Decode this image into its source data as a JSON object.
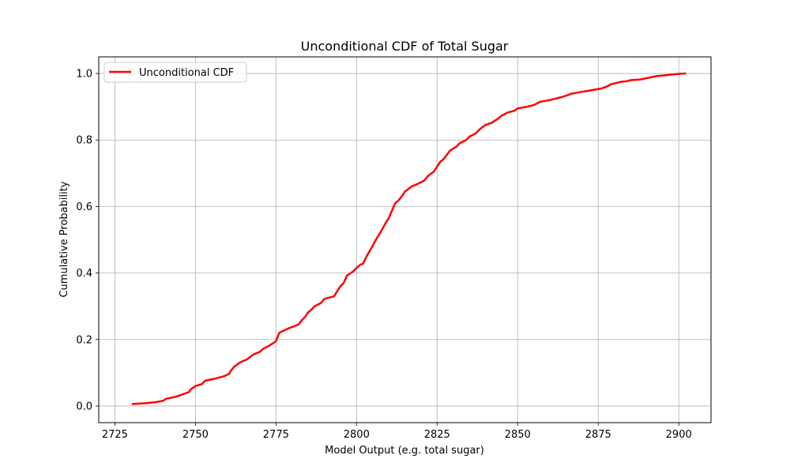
{
  "chart_data": {
    "type": "line",
    "title": "Unconditional CDF of Total Sugar",
    "xlabel": "Model Output (e.g. total sugar)",
    "ylabel": "Cumulative Probability",
    "xlim": [
      2720,
      2910
    ],
    "ylim": [
      -0.05,
      1.05
    ],
    "xticks": [
      2725,
      2750,
      2775,
      2800,
      2825,
      2850,
      2875,
      2900
    ],
    "yticks": [
      0.0,
      0.2,
      0.4,
      0.6,
      0.8,
      1.0
    ],
    "grid": true,
    "legend_position": "upper-left",
    "series": [
      {
        "name": "Unconditional CDF",
        "color": "#ff0000",
        "x": [
          2730.5,
          2735,
          2738,
          2740,
          2741,
          2744,
          2746,
          2748,
          2748.5,
          2750,
          2752,
          2753,
          2756,
          2759,
          2760.5,
          2761,
          2762,
          2764,
          2766,
          2767,
          2768,
          2770,
          2771,
          2773,
          2775,
          2776,
          2777,
          2779,
          2782,
          2783,
          2784,
          2785,
          2786,
          2787,
          2789,
          2790,
          2793,
          2794,
          2795,
          2796,
          2797,
          2799,
          2800,
          2801,
          2802,
          2803,
          2804,
          2805,
          2806,
          2807,
          2808,
          2809,
          2810,
          2811,
          2812,
          2813,
          2814,
          2815,
          2816,
          2817,
          2819,
          2821,
          2822,
          2823,
          2824,
          2825,
          2826,
          2827,
          2828,
          2829,
          2831,
          2832,
          2834,
          2835,
          2837,
          2838,
          2839,
          2840,
          2842,
          2844,
          2845,
          2847,
          2849,
          2850,
          2853,
          2855,
          2857,
          2860,
          2862,
          2864,
          2867,
          2870,
          2873,
          2876,
          2878,
          2879,
          2880,
          2882,
          2884,
          2885,
          2888,
          2891,
          2893,
          2896,
          2899,
          2902
        ],
        "y": [
          0.006,
          0.009,
          0.012,
          0.016,
          0.022,
          0.028,
          0.035,
          0.042,
          0.05,
          0.06,
          0.066,
          0.076,
          0.082,
          0.09,
          0.097,
          0.106,
          0.118,
          0.132,
          0.14,
          0.148,
          0.155,
          0.163,
          0.172,
          0.182,
          0.195,
          0.22,
          0.225,
          0.234,
          0.245,
          0.258,
          0.268,
          0.282,
          0.29,
          0.3,
          0.31,
          0.322,
          0.33,
          0.345,
          0.36,
          0.37,
          0.392,
          0.405,
          0.415,
          0.424,
          0.428,
          0.448,
          0.465,
          0.482,
          0.5,
          0.516,
          0.532,
          0.55,
          0.565,
          0.588,
          0.61,
          0.618,
          0.63,
          0.645,
          0.652,
          0.66,
          0.668,
          0.678,
          0.69,
          0.698,
          0.705,
          0.72,
          0.735,
          0.742,
          0.755,
          0.768,
          0.78,
          0.79,
          0.8,
          0.81,
          0.82,
          0.83,
          0.838,
          0.845,
          0.852,
          0.865,
          0.873,
          0.883,
          0.888,
          0.895,
          0.9,
          0.905,
          0.915,
          0.92,
          0.925,
          0.93,
          0.94,
          0.945,
          0.95,
          0.955,
          0.962,
          0.968,
          0.97,
          0.975,
          0.977,
          0.98,
          0.982,
          0.988,
          0.992,
          0.995,
          0.998,
          1.0
        ]
      }
    ]
  }
}
